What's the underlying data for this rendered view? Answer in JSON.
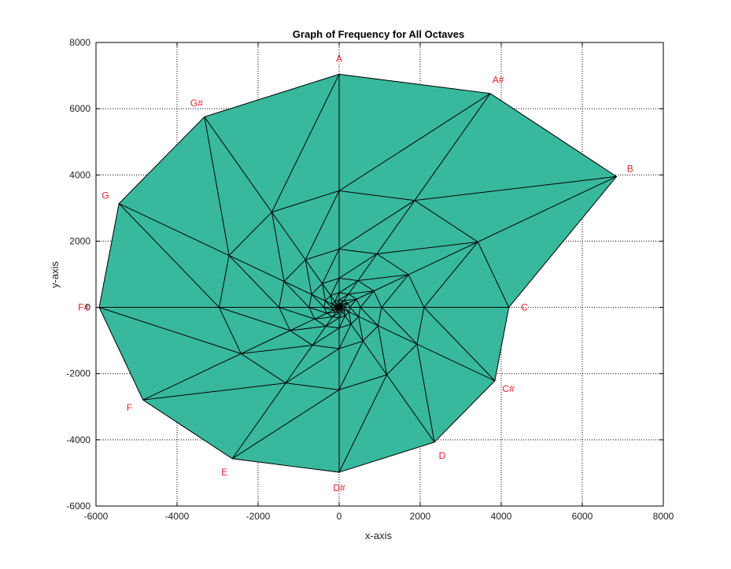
{
  "chart_data": {
    "type": "mesh",
    "title": "Graph of Frequency for All Octaves",
    "xlabel": "x-axis",
    "ylabel": "y-axis",
    "xlim": [
      -6000,
      8000
    ],
    "ylim": [
      -6000,
      8000
    ],
    "xticks": [
      -6000,
      -4000,
      -2000,
      0,
      2000,
      4000,
      6000,
      8000
    ],
    "yticks": [
      -6000,
      -4000,
      -2000,
      0,
      2000,
      4000,
      6000,
      8000
    ],
    "xtick_labels": [
      "-6000",
      "-4000",
      "-2000",
      "0",
      "2000",
      "4000",
      "6000",
      "8000"
    ],
    "ytick_labels": [
      "-6000",
      "-4000",
      "-2000",
      "0",
      "2000",
      "4000",
      "6000",
      "8000"
    ],
    "grid": true,
    "fill_color": "#38b89c",
    "edge_color": "#000000",
    "label_color": "#e8202a",
    "notes": [
      {
        "name": "C",
        "radius": 4186.0
      },
      {
        "name": "C#",
        "radius": 4434.9
      },
      {
        "name": "D",
        "radius": 4698.6
      },
      {
        "name": "D#",
        "radius": 4978.0
      },
      {
        "name": "E",
        "radius": 5274.0
      },
      {
        "name": "F",
        "radius": 5587.7
      },
      {
        "name": "F#",
        "radius": 5919.9
      },
      {
        "name": "G",
        "radius": 6271.9
      },
      {
        "name": "G#",
        "radius": 6644.9
      },
      {
        "name": "A",
        "radius": 7040.0
      },
      {
        "name": "A#",
        "radius": 7458.6
      },
      {
        "name": "B",
        "radius": 7902.1
      }
    ],
    "octaves": 8
  }
}
